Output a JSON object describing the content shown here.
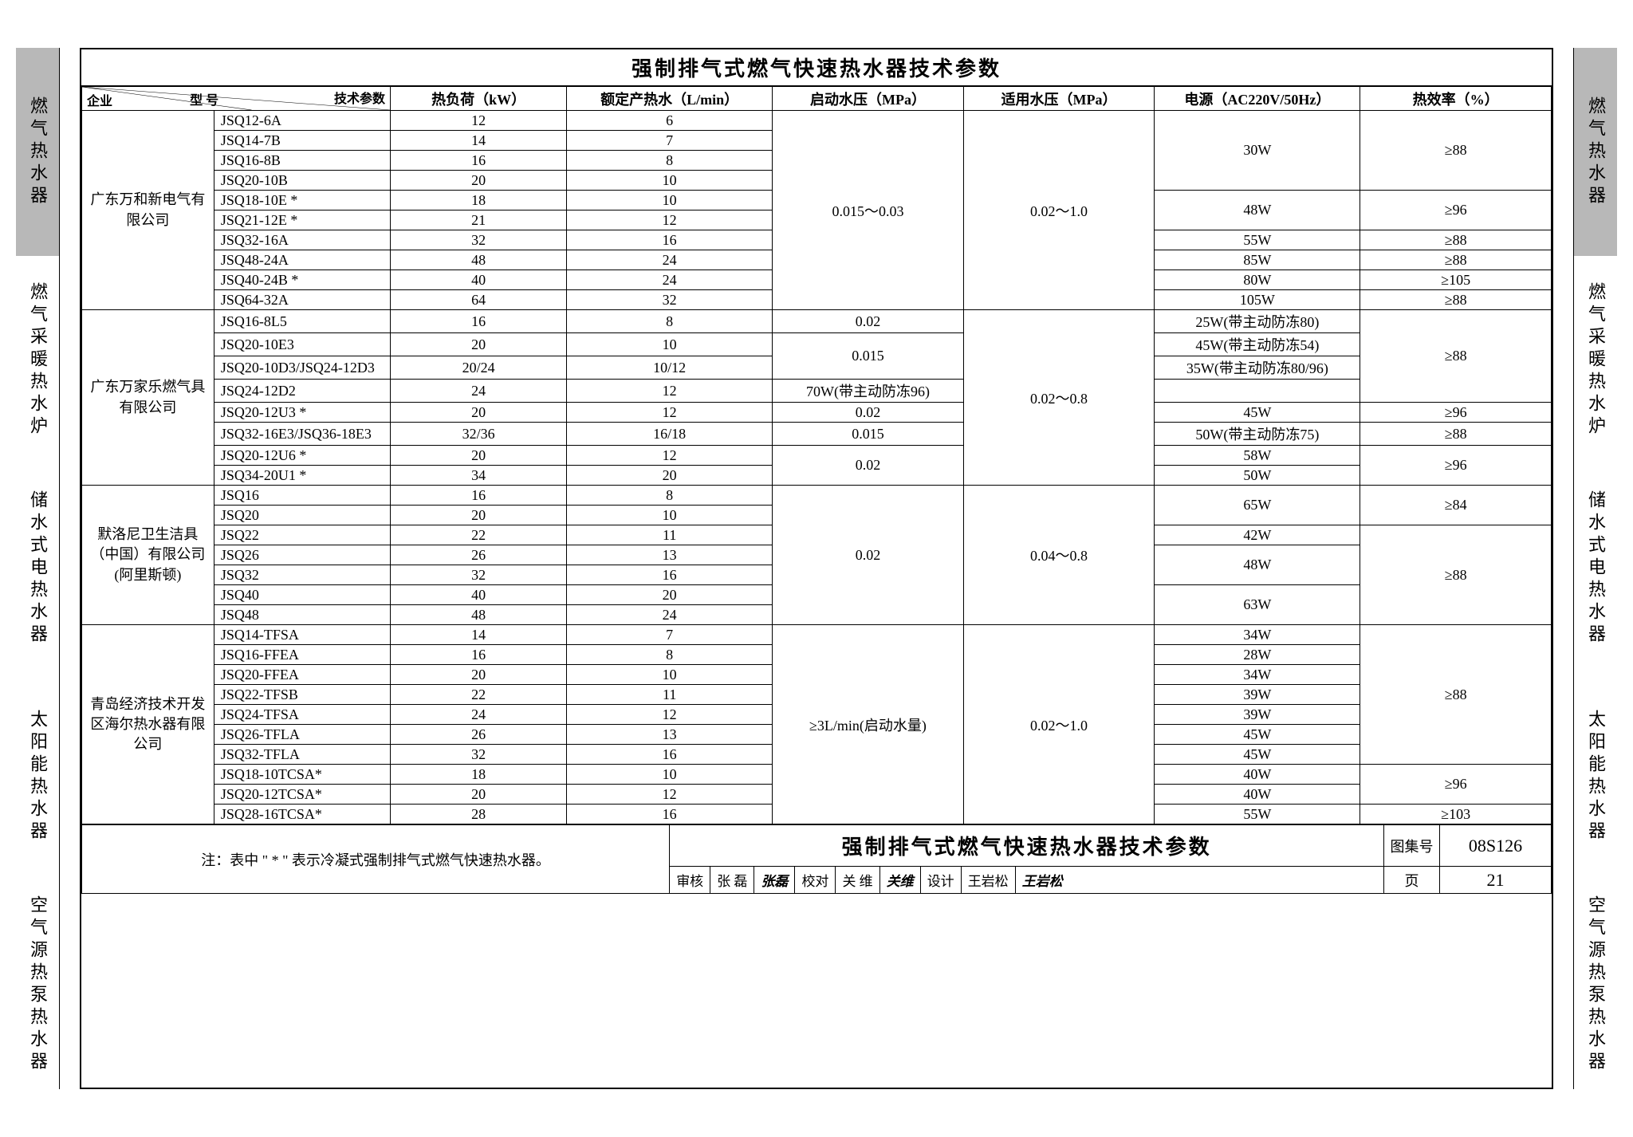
{
  "title": "强制排气式燃气快速热水器技术参数",
  "side_tabs": [
    {
      "label": "燃气热水器",
      "active": true
    },
    {
      "label": "燃气采暖热水炉",
      "active": false
    },
    {
      "label": "储水式电热水器",
      "active": false
    },
    {
      "label": "太阳能热水器",
      "active": false
    },
    {
      "label": "空气源热泵热水器",
      "active": false
    }
  ],
  "header": {
    "diag_tr": "技术参数",
    "diag_mid": "型 号",
    "diag_bl": "企业",
    "cols": [
      "热负荷（kW）",
      "额定产热水（L/min）",
      "启动水压（MPa）",
      "适用水压（MPa）",
      "电源（AC220V/50Hz）",
      "热效率（%）"
    ]
  },
  "groups": [
    {
      "company": "广东万和新电气有限公司",
      "start_mpa": "0.015～0.03",
      "apply_mpa": "0.02～1.0",
      "rows": [
        {
          "model": "JSQ12-6A",
          "kw": "12",
          "lm": "6",
          "power": "30W",
          "eff": "≥88",
          "p_rs": 4,
          "e_rs": 4
        },
        {
          "model": "JSQ14-7B",
          "kw": "14",
          "lm": "7"
        },
        {
          "model": "JSQ16-8B",
          "kw": "16",
          "lm": "8"
        },
        {
          "model": "JSQ20-10B",
          "kw": "20",
          "lm": "10"
        },
        {
          "model": "JSQ18-10E *",
          "kw": "18",
          "lm": "10",
          "power": "48W",
          "eff": "≥96",
          "p_rs": 2,
          "e_rs": 2
        },
        {
          "model": "JSQ21-12E *",
          "kw": "21",
          "lm": "12"
        },
        {
          "model": "JSQ32-16A",
          "kw": "32",
          "lm": "16",
          "power": "55W",
          "eff": "≥88",
          "p_rs": 1,
          "e_rs": 1
        },
        {
          "model": "JSQ48-24A",
          "kw": "48",
          "lm": "24",
          "power": "85W",
          "eff": "≥88",
          "p_rs": 1,
          "e_rs": 1
        },
        {
          "model": "JSQ40-24B *",
          "kw": "40",
          "lm": "24",
          "power": "80W",
          "eff": "≥105",
          "p_rs": 1,
          "e_rs": 1
        },
        {
          "model": "JSQ64-32A",
          "kw": "64",
          "lm": "32",
          "power": "105W",
          "eff": "≥88",
          "p_rs": 1,
          "e_rs": 1
        }
      ]
    },
    {
      "company": "广东万家乐燃气具有限公司",
      "apply_mpa": "0.02～0.8",
      "rows": [
        {
          "model": "JSQ16-8L5",
          "kw": "16",
          "lm": "8",
          "start": "0.02",
          "s_rs": 1,
          "power": "25W(带主动防冻80)",
          "eff": "≥88",
          "p_rs": 1,
          "e_rs": 4
        },
        {
          "model": "JSQ20-10E3",
          "kw": "20",
          "lm": "10",
          "start": "",
          "s_rs": 0,
          "power": "45W(带主动防冻54)",
          "p_rs": 1,
          "merge_prev_s": true,
          "start2": "0.015",
          "s2_rs": 2
        },
        {
          "model": "JSQ20-10D3/JSQ24-12D3",
          "kw": "20/24",
          "lm": "10/12",
          "power": "35W(带主动防冻80/96)",
          "p_rs": 1
        },
        {
          "model": "JSQ24-12D2",
          "kw": "24",
          "lm": "12",
          "power": "70W(带主动防冻96)",
          "p_rs": 1
        },
        {
          "model": "JSQ20-12U3 *",
          "kw": "20",
          "lm": "12",
          "start": "0.02",
          "s_rs": 1,
          "power": "45W",
          "eff": "≥96",
          "p_rs": 1,
          "e_rs": 1
        },
        {
          "model": "JSQ32-16E3/JSQ36-18E3",
          "kw": "32/36",
          "lm": "16/18",
          "start": "0.015",
          "s_rs": 1,
          "power": "50W(带主动防冻75)",
          "eff": "≥88",
          "p_rs": 1,
          "e_rs": 1
        },
        {
          "model": "JSQ20-12U6 *",
          "kw": "20",
          "lm": "12",
          "start": "0.02",
          "s_rs": 2,
          "power": "58W",
          "eff": "≥96",
          "p_rs": 1,
          "e_rs": 2
        },
        {
          "model": "JSQ34-20U1 *",
          "kw": "34",
          "lm": "20",
          "power": "50W",
          "p_rs": 1
        }
      ]
    },
    {
      "company": "默洛尼卫生洁具（中国）有限公司(阿里斯顿)",
      "start_mpa": "0.02",
      "apply_mpa": "0.04～0.8",
      "rows": [
        {
          "model": "JSQ16",
          "kw": "16",
          "lm": "8",
          "power": "65W",
          "eff": "≥84",
          "p_rs": 2,
          "e_rs": 2
        },
        {
          "model": "JSQ20",
          "kw": "20",
          "lm": "10"
        },
        {
          "model": "JSQ22",
          "kw": "22",
          "lm": "11",
          "power": "42W",
          "eff": "≥88",
          "p_rs": 1,
          "e_rs": 5
        },
        {
          "model": "JSQ26",
          "kw": "26",
          "lm": "13",
          "power": "48W",
          "p_rs": 2
        },
        {
          "model": "JSQ32",
          "kw": "32",
          "lm": "16"
        },
        {
          "model": "JSQ40",
          "kw": "40",
          "lm": "20",
          "power": "63W",
          "p_rs": 2
        },
        {
          "model": "JSQ48",
          "kw": "48",
          "lm": "24"
        }
      ]
    },
    {
      "company": "青岛经济技术开发区海尔热水器有限公司",
      "start_mpa": "≥3L/min(启动水量)",
      "apply_mpa": "0.02～1.0",
      "rows": [
        {
          "model": "JSQ14-TFSA",
          "kw": "14",
          "lm": "7",
          "power": "34W",
          "eff": "≥88",
          "p_rs": 1,
          "e_rs": 7
        },
        {
          "model": "JSQ16-FFEA",
          "kw": "16",
          "lm": "8",
          "power": "28W",
          "p_rs": 1
        },
        {
          "model": "JSQ20-FFEA",
          "kw": "20",
          "lm": "10",
          "power": "34W",
          "p_rs": 1
        },
        {
          "model": "JSQ22-TFSB",
          "kw": "22",
          "lm": "11",
          "power": "39W",
          "p_rs": 1
        },
        {
          "model": "JSQ24-TFSA",
          "kw": "24",
          "lm": "12",
          "power": "39W",
          "p_rs": 1
        },
        {
          "model": "JSQ26-TFLA",
          "kw": "26",
          "lm": "13",
          "power": "45W",
          "p_rs": 1
        },
        {
          "model": "JSQ32-TFLA",
          "kw": "32",
          "lm": "16",
          "power": "45W",
          "p_rs": 1
        },
        {
          "model": "JSQ18-10TCSA*",
          "kw": "18",
          "lm": "10",
          "power": "40W",
          "eff": "≥96",
          "p_rs": 1,
          "e_rs": 2
        },
        {
          "model": "JSQ20-12TCSA*",
          "kw": "20",
          "lm": "12",
          "power": "40W",
          "p_rs": 1
        },
        {
          "model": "JSQ28-16TCSA*",
          "kw": "28",
          "lm": "16",
          "power": "55W",
          "eff": "≥103",
          "p_rs": 1,
          "e_rs": 1
        }
      ]
    }
  ],
  "note": "注：表中 \" * \" 表示冷凝式强制排气式燃气快速热水器。",
  "footer": {
    "subtitle": "强制排气式燃气快速热水器技术参数",
    "sign": [
      {
        "k": "审核",
        "v": "张 磊",
        "sig": "张磊"
      },
      {
        "k": "校对",
        "v": "关 维",
        "sig": "关维"
      },
      {
        "k": "设计",
        "v": "王岩松",
        "sig": "王岩松"
      }
    ],
    "codes": [
      {
        "k": "图集号",
        "v": "08S126"
      },
      {
        "k": "页",
        "v": "21"
      }
    ]
  },
  "colors": {
    "bg": "#ffffff",
    "border": "#000000",
    "tab_active": "#b8b8b8"
  }
}
